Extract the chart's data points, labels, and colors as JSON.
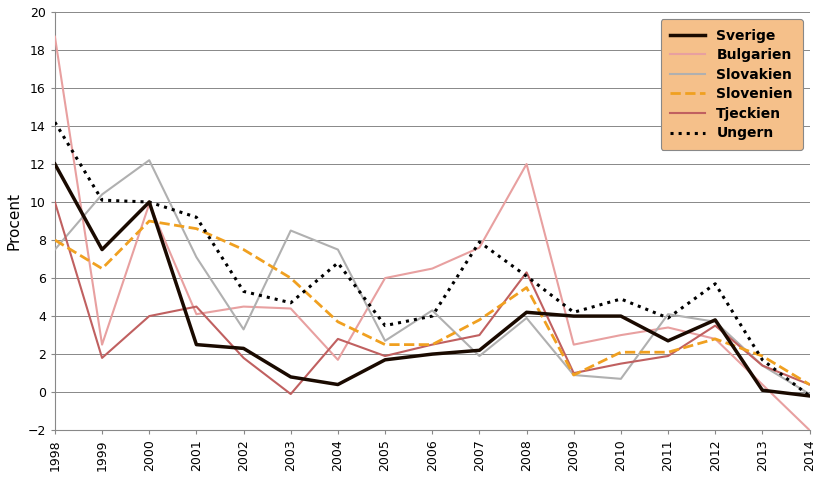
{
  "years": [
    1998,
    1999,
    2000,
    2001,
    2002,
    2003,
    2004,
    2005,
    2006,
    2007,
    2008,
    2009,
    2010,
    2011,
    2012,
    2013,
    2014
  ],
  "series": {
    "Sverige": {
      "values": [
        12.0,
        7.5,
        10.0,
        2.5,
        2.3,
        0.8,
        0.4,
        1.7,
        2.0,
        2.2,
        4.2,
        4.0,
        4.0,
        2.7,
        3.8,
        0.1,
        -0.2
      ],
      "color": "#1a0a00",
      "linestyle": "solid",
      "linewidth": 2.5,
      "zorder": 5
    },
    "Bulgarien": {
      "values": [
        18.7,
        2.5,
        9.9,
        4.1,
        4.5,
        4.4,
        1.7,
        6.0,
        6.5,
        7.6,
        12.0,
        2.5,
        3.0,
        3.4,
        2.8,
        0.4,
        -2.0
      ],
      "color": "#e8a0a0",
      "linestyle": "solid",
      "linewidth": 1.5,
      "zorder": 3
    },
    "Slovakien": {
      "values": [
        7.5,
        10.4,
        12.2,
        7.1,
        3.3,
        8.5,
        7.5,
        2.7,
        4.3,
        1.9,
        3.9,
        0.9,
        0.7,
        4.1,
        3.7,
        1.4,
        -0.1
      ],
      "color": "#b0b0b0",
      "linestyle": "solid",
      "linewidth": 1.5,
      "zorder": 3
    },
    "Slovenien": {
      "values": [
        8.0,
        6.5,
        9.0,
        8.6,
        7.5,
        6.0,
        3.7,
        2.5,
        2.5,
        3.8,
        5.5,
        0.9,
        2.1,
        2.1,
        2.8,
        1.9,
        0.4
      ],
      "color": "#f0a020",
      "linestyle": "dashed",
      "linewidth": 2.0,
      "zorder": 4
    },
    "Tjeckien": {
      "values": [
        10.0,
        1.8,
        4.0,
        4.5,
        1.8,
        -0.1,
        2.8,
        1.9,
        2.5,
        3.0,
        6.3,
        1.0,
        1.5,
        1.9,
        3.5,
        1.4,
        0.4
      ],
      "color": "#c06060",
      "linestyle": "solid",
      "linewidth": 1.5,
      "zorder": 3
    },
    "Ungern": {
      "values": [
        14.2,
        10.1,
        10.0,
        9.2,
        5.3,
        4.7,
        6.8,
        3.5,
        4.0,
        7.9,
        6.1,
        4.2,
        4.9,
        3.9,
        5.7,
        1.7,
        -0.2
      ],
      "color": "#000000",
      "linestyle": "dotted",
      "linewidth": 2.2,
      "zorder": 4
    }
  },
  "ylabel": "Procent",
  "ylim": [
    -2,
    20
  ],
  "yticks": [
    -2,
    0,
    2,
    4,
    6,
    8,
    10,
    12,
    14,
    16,
    18,
    20
  ],
  "legend_bg_color": "#f5c08a",
  "legend_order": [
    "Sverige",
    "Bulgarien",
    "Slovakien",
    "Slovenien",
    "Tjeckien",
    "Ungern"
  ]
}
